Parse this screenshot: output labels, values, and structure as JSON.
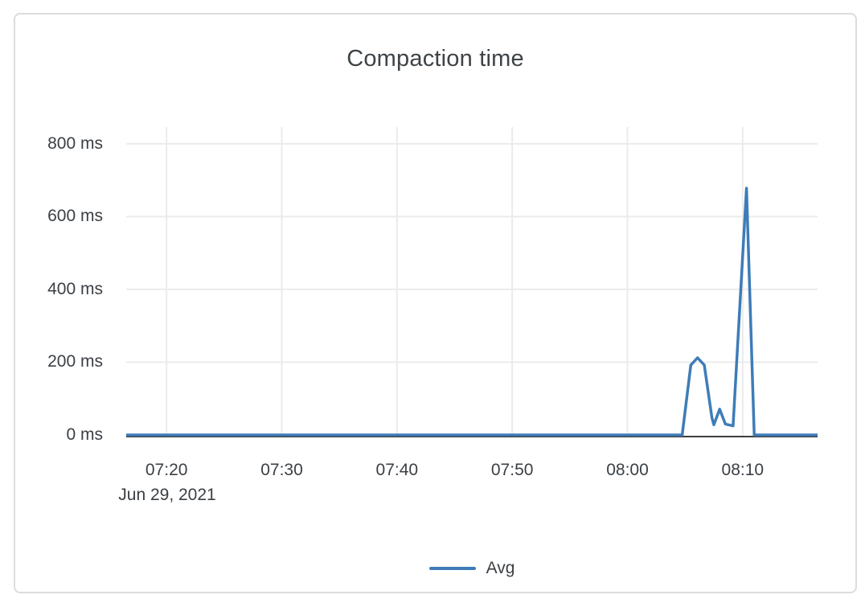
{
  "colors": {
    "series_blue": "#3e7cb8",
    "grid_line": "#ebebeb",
    "axis_line": "#3d3d3d",
    "text": "#3b4045",
    "card_border": "#dcdcdc"
  },
  "chart_data": {
    "type": "line",
    "title": "Compaction time",
    "grid": true,
    "legend_position": "bottom-center",
    "x_axis": {
      "type": "time",
      "date_label": "Jun 29, 2021",
      "ticks": [
        "07:20",
        "07:30",
        "07:40",
        "07:50",
        "08:00",
        "08:10"
      ],
      "range": [
        "07:16:30",
        "08:16:30"
      ]
    },
    "y_axis": {
      "unit": "ms",
      "ticks": [
        0,
        200,
        400,
        600,
        800
      ],
      "tick_labels": [
        "0 ms",
        "200 ms",
        "400 ms",
        "600 ms",
        "800 ms"
      ],
      "range": [
        0,
        846
      ]
    },
    "series": [
      {
        "name": "Avg",
        "color": "#3e7cb8",
        "points": [
          [
            "07:16:30",
            0
          ],
          [
            "08:04:45",
            0
          ],
          [
            "08:05:30",
            192
          ],
          [
            "08:06:05",
            212
          ],
          [
            "08:06:40",
            192
          ],
          [
            "08:07:20",
            47
          ],
          [
            "08:07:30",
            28
          ],
          [
            "08:08:00",
            71
          ],
          [
            "08:08:30",
            30
          ],
          [
            "08:09:10",
            25
          ],
          [
            "08:10:20",
            678
          ],
          [
            "08:11:00",
            0
          ],
          [
            "08:16:30",
            0
          ]
        ]
      }
    ]
  }
}
